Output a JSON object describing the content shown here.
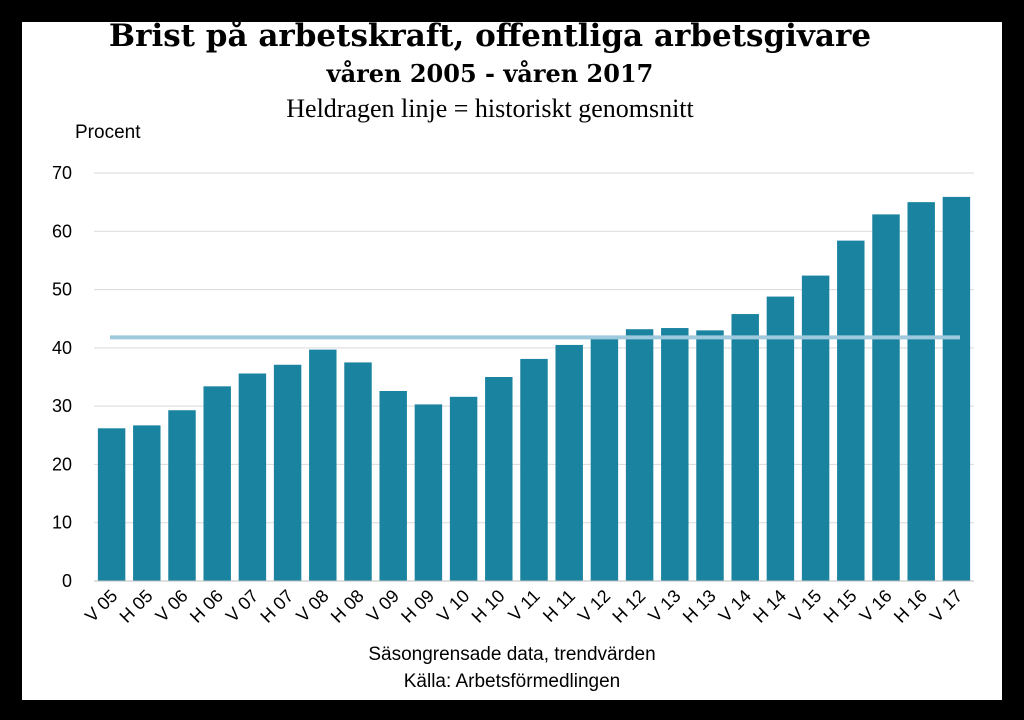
{
  "chart_data": {
    "type": "bar",
    "title": "Brist på arbetskraft, offentliga arbetsgivare",
    "subtitle": "våren 2005 - våren 2017",
    "note": "Heldragen linje = historiskt genomsnitt",
    "ylabel": "Procent",
    "xlabel": "Säsongrensade data, trendvärden",
    "source": "Källa: Arbetsförmedlingen",
    "ylim": [
      0,
      70
    ],
    "yticks": [
      0,
      10,
      20,
      30,
      40,
      50,
      60,
      70
    ],
    "grid": true,
    "categories": [
      "V 05",
      "H 05",
      "V 06",
      "H 06",
      "V 07",
      "H 07",
      "V 08",
      "H 08",
      "V 09",
      "H 09",
      "V 10",
      "H 10",
      "V 11",
      "H 11",
      "V 12",
      "H 12",
      "V 13",
      "H 13",
      "V 14",
      "H 14",
      "V 15",
      "H 15",
      "V 16",
      "H 16",
      "V 17"
    ],
    "values": [
      26.2,
      26.7,
      29.3,
      33.4,
      35.6,
      37.1,
      39.7,
      37.5,
      32.6,
      30.3,
      31.6,
      35.0,
      38.1,
      40.5,
      41.8,
      43.2,
      43.4,
      43.0,
      45.8,
      48.8,
      52.4,
      58.4,
      62.9,
      65.0,
      65.9
    ],
    "average": 41.8,
    "colors": {
      "bar": "#1a84a0",
      "average_line": "#9fc9dc",
      "grid": "#d9d9d9"
    }
  }
}
